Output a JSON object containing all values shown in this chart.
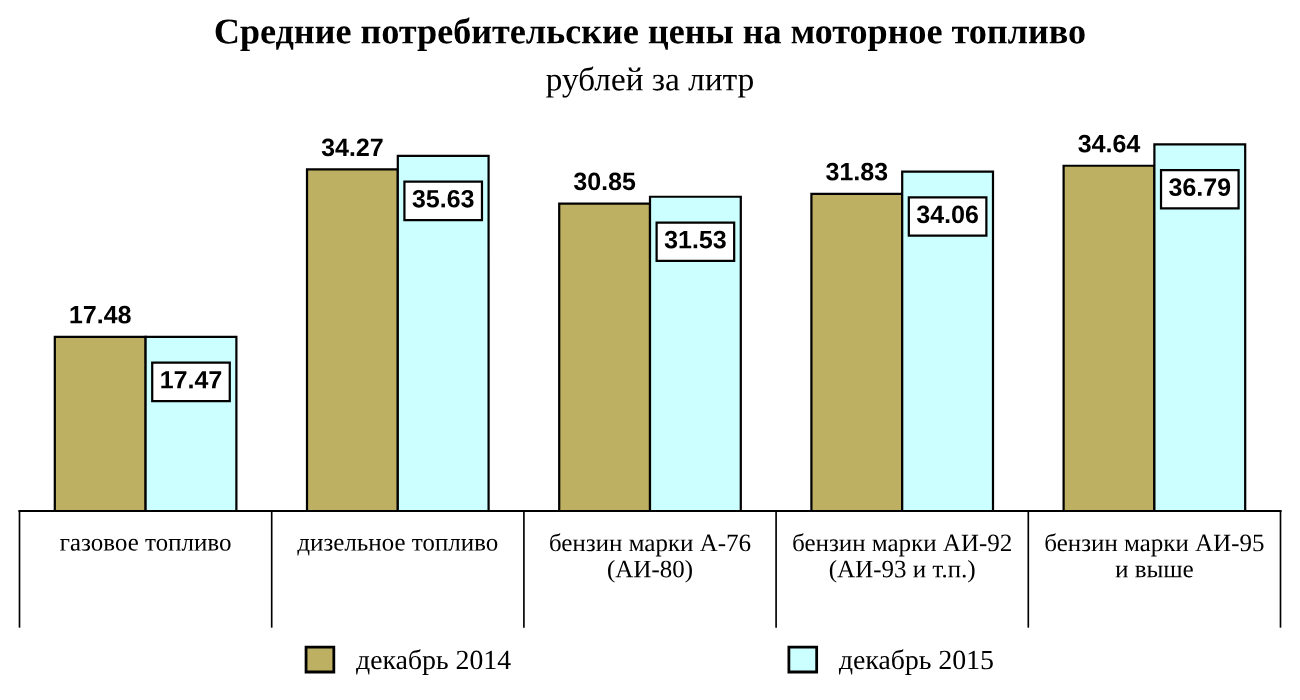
{
  "chart_data": {
    "type": "bar",
    "title": "Средние потребительские цены на моторное топливо",
    "subtitle": "рублей за литр",
    "categories": [
      "газовое топливо",
      "дизельное топливо",
      "бензин марки А-76\n(АИ-80)",
      "бензин марки АИ-92\n(АИ-93 и т.п.)",
      "бензин марки АИ-95\nи выше"
    ],
    "series": [
      {
        "name": "декабрь 2014",
        "color": "#bdb062",
        "values": [
          17.48,
          34.27,
          30.85,
          31.83,
          34.64
        ]
      },
      {
        "name": "декабрь 2015",
        "color": "#ccffff",
        "values": [
          17.47,
          35.63,
          31.53,
          34.06,
          36.79
        ]
      }
    ],
    "data_labels": true,
    "legend": "bottom",
    "grid": false
  }
}
